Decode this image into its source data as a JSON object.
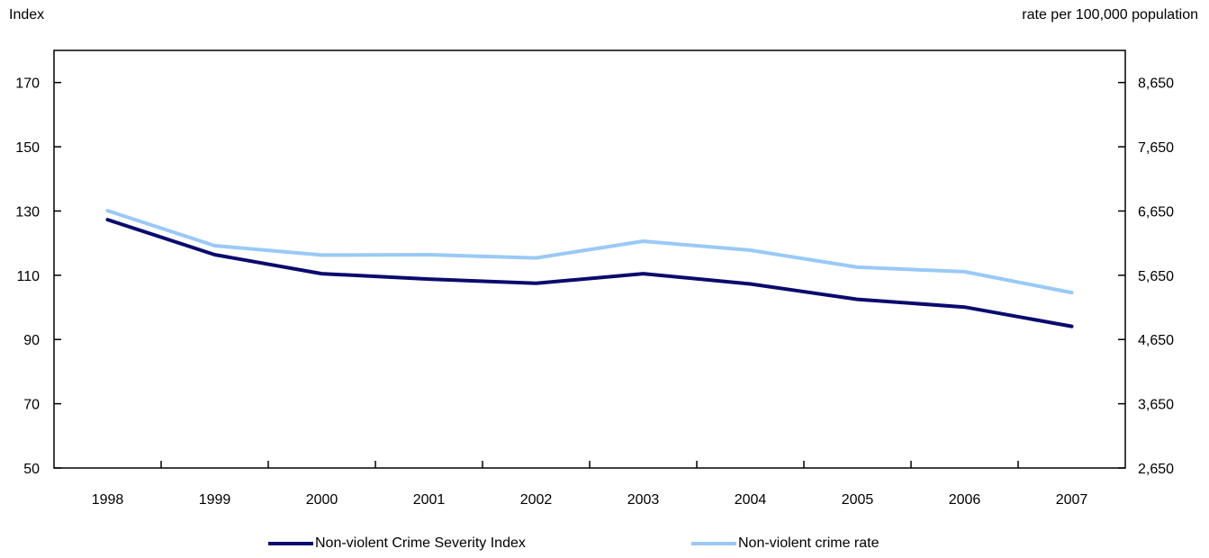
{
  "chart_data": {
    "type": "line",
    "left_axis_label": "Index",
    "right_axis_label": "rate per 100,000 population",
    "categories": [
      "1998",
      "1999",
      "2000",
      "2001",
      "2002",
      "2003",
      "2004",
      "2005",
      "2006",
      "2007"
    ],
    "left_ylim": [
      50,
      180
    ],
    "left_yticks": [
      50,
      70,
      90,
      110,
      130,
      150,
      170
    ],
    "right_ylim": [
      2650,
      9150
    ],
    "right_yticks": [
      2650,
      3650,
      4650,
      5650,
      6650,
      7650,
      8650
    ],
    "right_ytick_labels": [
      "2,650",
      "3,650",
      "4,650",
      "5,650",
      "6,650",
      "7,650",
      "8,650"
    ],
    "series": [
      {
        "name": "Non-violent Crime Severity Index",
        "axis": "left",
        "color": "#0a0a6e",
        "values": [
          127.3,
          116.4,
          110.5,
          108.8,
          107.5,
          110.5,
          107.3,
          102.5,
          100.1,
          94.1
        ]
      },
      {
        "name": "Non-violent crime rate",
        "axis": "right",
        "color": "#99c9f7",
        "values": [
          6655,
          6110,
          5965,
          5970,
          5920,
          6180,
          6040,
          5775,
          5705,
          5380
        ]
      }
    ],
    "legend_position": "bottom",
    "grid": false
  }
}
